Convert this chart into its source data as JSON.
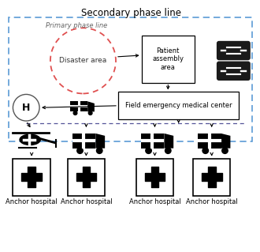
{
  "title": "Secondary phase line",
  "primary_phase_label": "Primary phase line",
  "disaster_area_label": "Disaster area",
  "patient_assembly_label": "Patient\nassembly\narea",
  "field_emergency_label": "Field emergency medical center",
  "anchor_hospital_label": "Anchor hospital",
  "bg_color": "#ffffff",
  "outer_box_color": "#5b9bd5",
  "red_circle_color": "#e05050",
  "title_fontsize": 8.5,
  "label_fontsize": 7.0,
  "small_fontsize": 6.0,
  "icon_fontsize": 18,
  "car_fontsize": 22
}
